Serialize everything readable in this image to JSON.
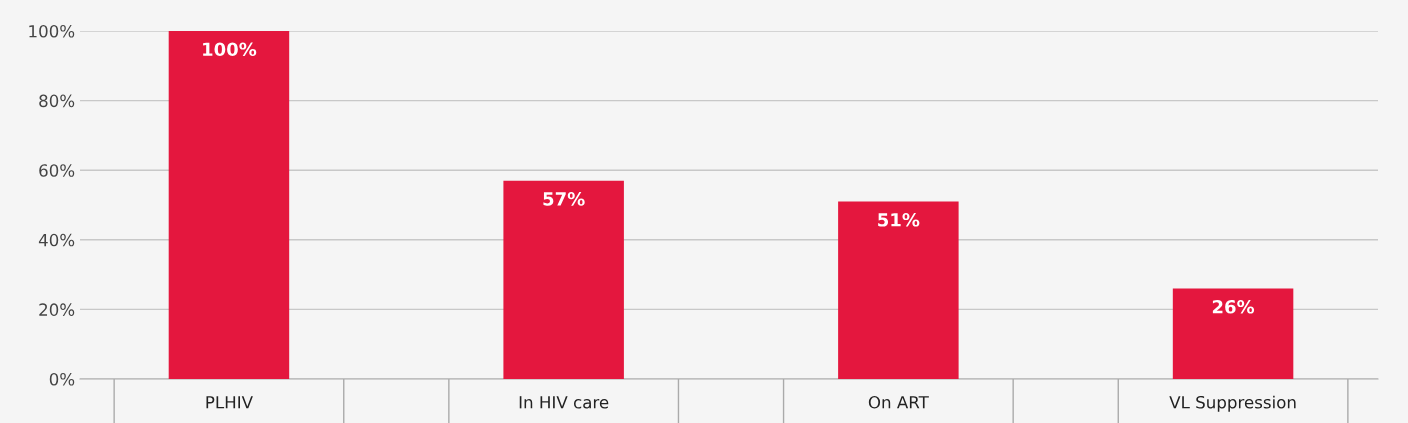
{
  "chart_data": {
    "type": "bar",
    "categories": [
      "PLHIV",
      "In HIV care",
      "On ART",
      "VL Suppression"
    ],
    "values": [
      100,
      57,
      51,
      26
    ],
    "value_labels": [
      "100%",
      "57%",
      "51%",
      "26%"
    ],
    "color": "#e4173e",
    "ylim": [
      0,
      100
    ],
    "yticks": [
      {
        "value": 0,
        "label": "0%"
      },
      {
        "value": 20,
        "label": "20%"
      },
      {
        "value": 40,
        "label": "40%"
      },
      {
        "value": 60,
        "label": "60%"
      },
      {
        "value": 80,
        "label": "80%"
      },
      {
        "value": 100,
        "label": "100%"
      }
    ],
    "grid": "y",
    "legend": false
  }
}
